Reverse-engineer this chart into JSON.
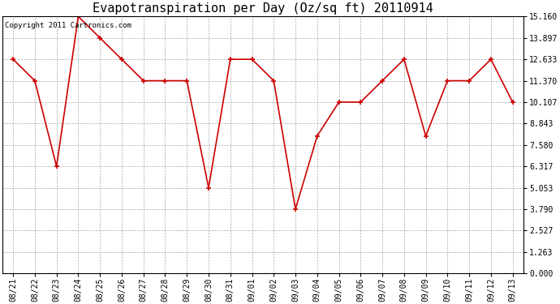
{
  "title": "Evapotranspiration per Day (Oz/sq ft) 20110914",
  "copyright": "Copyright 2011 Cartronics.com",
  "dates": [
    "08/21",
    "08/22",
    "08/23",
    "08/24",
    "08/25",
    "08/26",
    "08/27",
    "08/28",
    "08/29",
    "08/30",
    "08/31",
    "09/01",
    "09/02",
    "09/03",
    "09/04",
    "09/05",
    "09/06",
    "09/07",
    "09/08",
    "09/09",
    "09/10",
    "09/11",
    "09/12",
    "09/13"
  ],
  "values": [
    12.633,
    11.37,
    6.317,
    15.16,
    13.897,
    12.633,
    11.37,
    11.37,
    11.37,
    5.053,
    12.633,
    12.633,
    11.37,
    3.79,
    8.107,
    10.107,
    10.107,
    11.37,
    12.633,
    8.107,
    11.37,
    11.37,
    12.633,
    10.107
  ],
  "yticks": [
    0.0,
    1.263,
    2.527,
    3.79,
    5.053,
    6.317,
    7.58,
    8.843,
    10.107,
    11.37,
    12.633,
    13.897,
    15.16
  ],
  "ylim": [
    0.0,
    15.16
  ],
  "line_color": "#cc0000",
  "marker": "+",
  "marker_size": 5,
  "marker_linewidth": 1.2,
  "linewidth": 1.2,
  "bg_color": "#ffffff",
  "plot_bg_color": "#ffffff",
  "grid_color": "#aaaaaa",
  "title_fontsize": 11,
  "copyright_fontsize": 6.5,
  "tick_fontsize": 7,
  "ytick_fontsize": 7
}
